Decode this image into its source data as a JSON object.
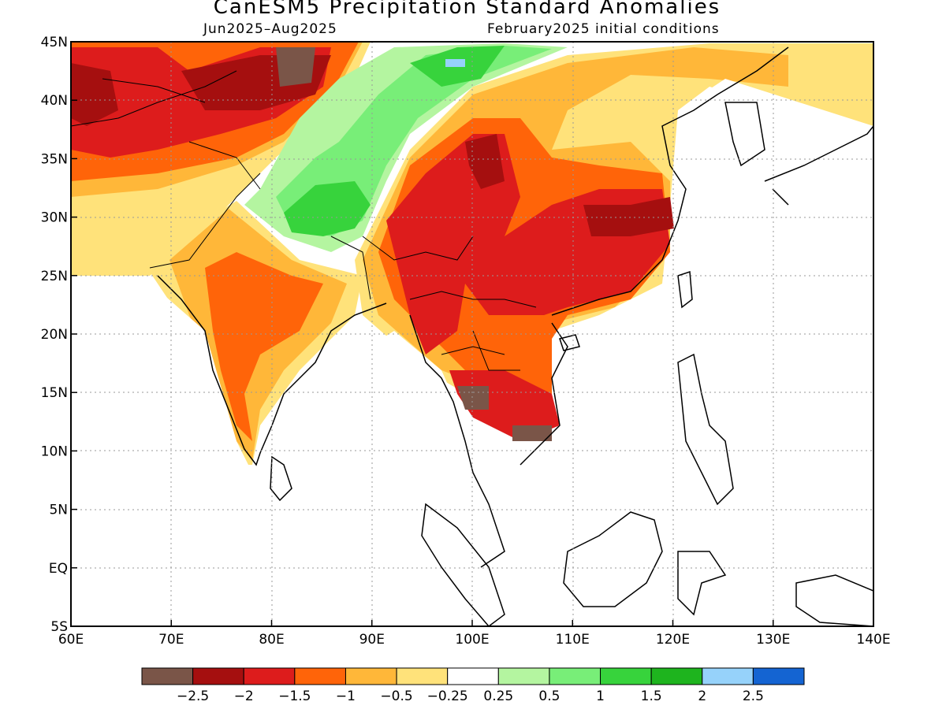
{
  "title": "CanESM5 Precipitation Standard Anomalies",
  "period": "Jun2025–Aug2025",
  "init": "February2025 initial conditions",
  "lon_labels": [
    "60E",
    "70E",
    "80E",
    "90E",
    "100E",
    "110E",
    "120E",
    "130E",
    "140E"
  ],
  "lat_labels": [
    "45N",
    "40N",
    "35N",
    "30N",
    "25N",
    "20N",
    "15N",
    "10N",
    "5N",
    "EQ",
    "5S"
  ],
  "colorbar": {
    "colors": [
      "#7a5548",
      "#a50f0f",
      "#dd1c1c",
      "#ff6409",
      "#ffb739",
      "#ffe27a",
      "#ffffff",
      "#b4f5a0",
      "#78ee78",
      "#37d33c",
      "#1eb41e",
      "#96d2fa",
      "#1464d2"
    ],
    "labels": [
      "−2.5",
      "−2",
      "−1.5",
      "−1",
      "−0.5",
      "−0.25",
      "0.25",
      "0.5",
      "1",
      "1.5",
      "2",
      "2.5"
    ]
  },
  "legend_colors": {
    "strong_dry": "#7a5548",
    "very_dry": "#a50f0f",
    "dry": "#dd1c1c",
    "mod_dry": "#ff6409",
    "light_dry": "#ffb739",
    "slight_dry": "#ffe27a",
    "neutral": "#ffffff",
    "slight_wet": "#b4f5a0",
    "light_wet": "#78ee78",
    "wet": "#37d33c",
    "very_wet": "#1eb41e",
    "strong_wet": "#96d2fa"
  }
}
